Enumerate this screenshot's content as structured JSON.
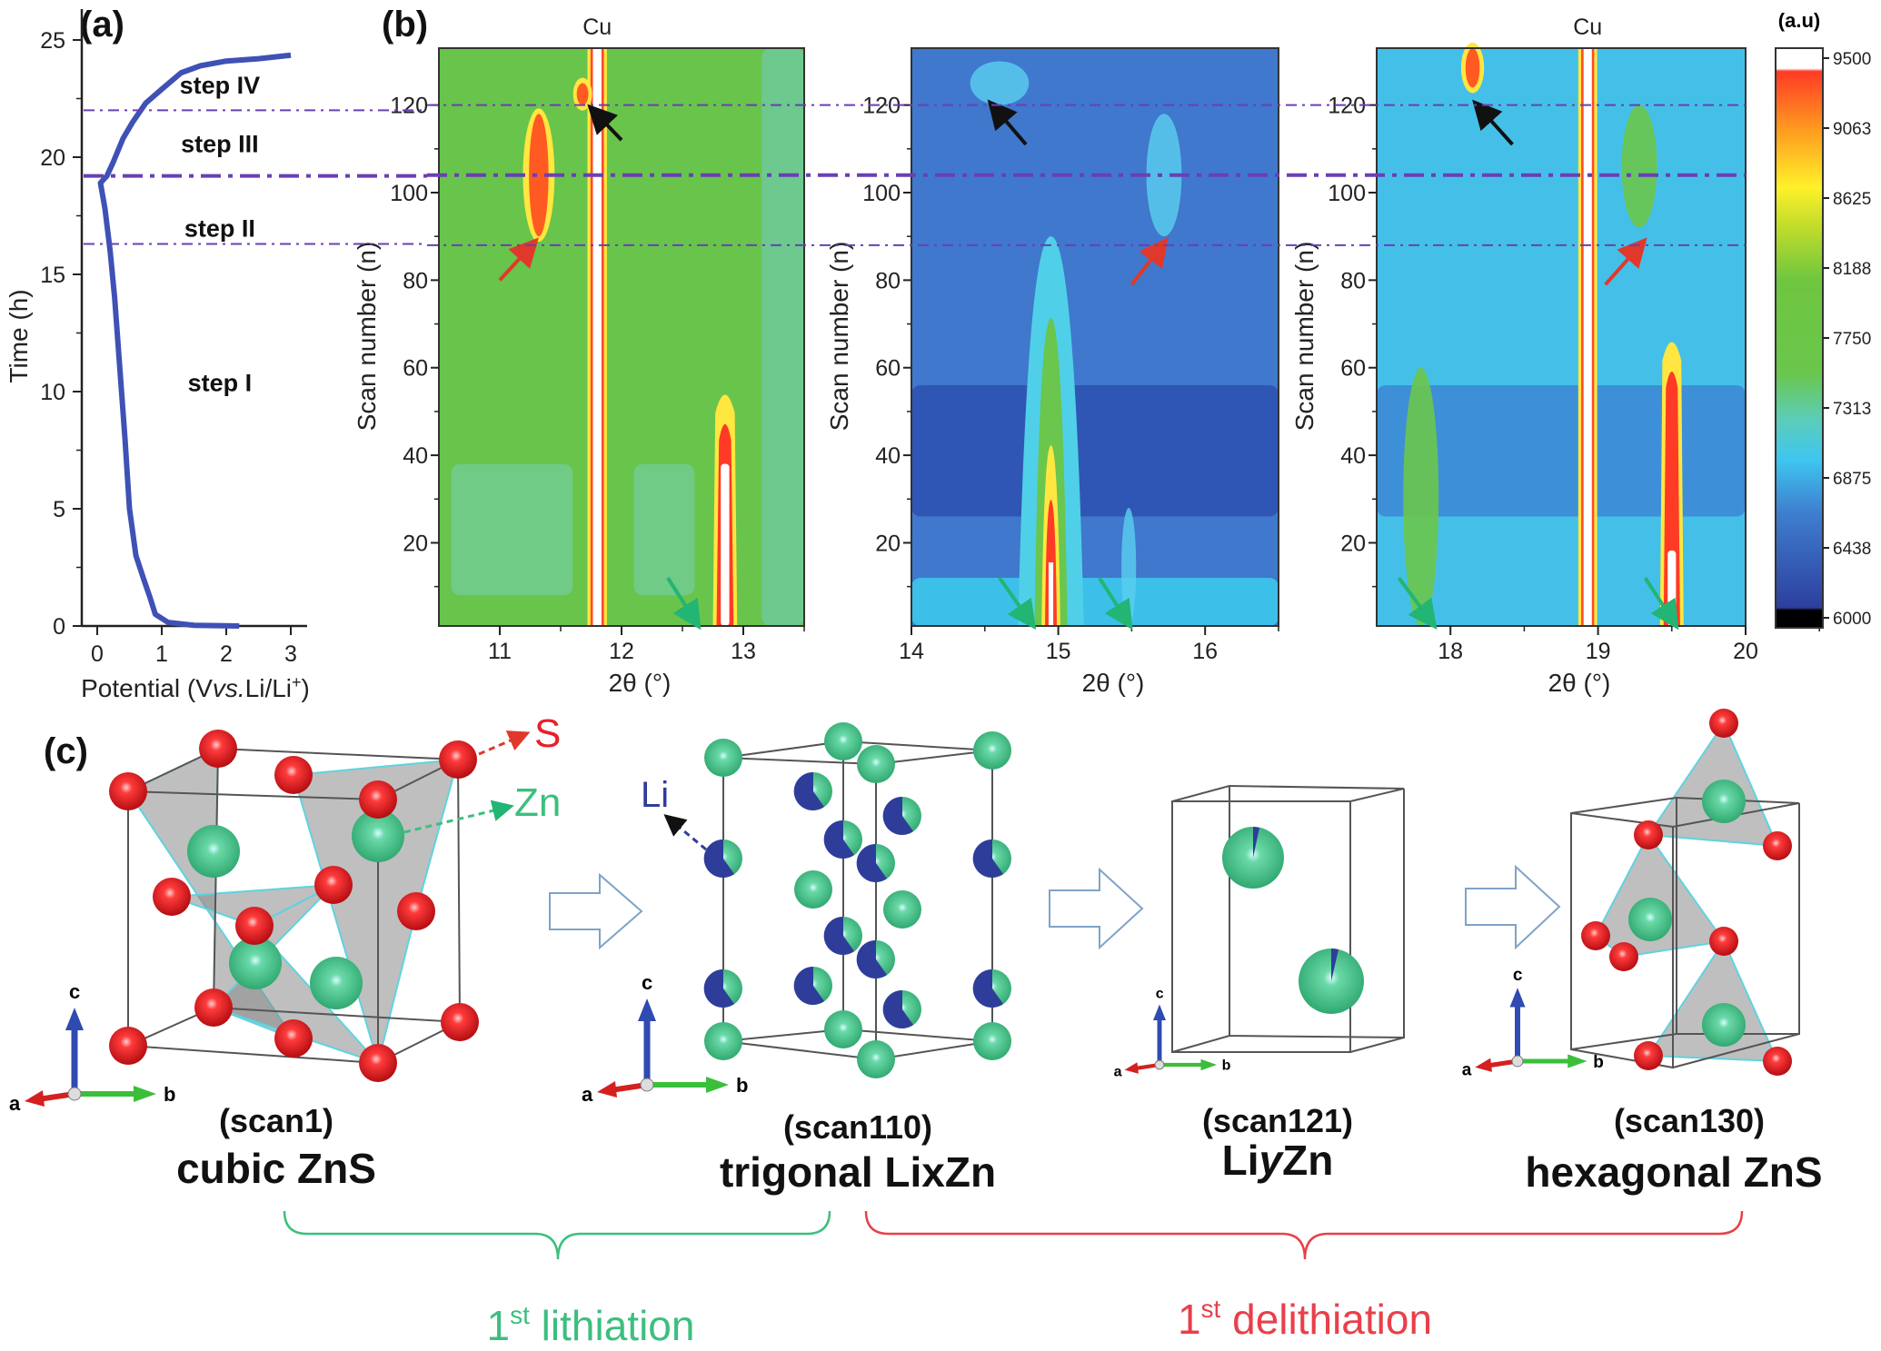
{
  "panels": {
    "a": "(a)",
    "b": "(b)",
    "c": "(c)"
  },
  "chart_data": [
    {
      "type": "line",
      "panel": "(a)",
      "xlabel": "Potential (V vs. Li/Li⁺)",
      "xlabel_parts": [
        "Potential (V",
        "vs.",
        "Li/Li",
        "+",
        ")"
      ],
      "ylabel": "Time (h)",
      "xlim": [
        -0.3,
        3.3
      ],
      "ylim": [
        0,
        25.5
      ],
      "xticks": [
        0,
        1,
        2,
        3
      ],
      "yticks": [
        0,
        5,
        10,
        15,
        20,
        25
      ],
      "line_color": "#3f51b5",
      "x": [
        2.2,
        1.5,
        1.1,
        0.9,
        0.82,
        0.72,
        0.6,
        0.5,
        0.43,
        0.35,
        0.27,
        0.2,
        0.12,
        0.05,
        0.15,
        0.25,
        0.4,
        0.55,
        0.75,
        1.0,
        1.3,
        1.6,
        2.0,
        2.5,
        3.0
      ],
      "y": [
        0,
        0.03,
        0.15,
        0.5,
        1.2,
        2.0,
        3.0,
        5.0,
        8.0,
        11.0,
        14.0,
        16.0,
        17.8,
        18.9,
        19.2,
        19.8,
        20.8,
        21.5,
        22.3,
        22.9,
        23.6,
        23.9,
        24.1,
        24.2,
        24.35
      ],
      "step_lines_time": [
        22.0,
        19.2,
        16.3
      ],
      "annotations": [
        {
          "text": "step IV",
          "x": 1.9,
          "y": 23.1
        },
        {
          "text": "step III",
          "x": 1.9,
          "y": 20.6
        },
        {
          "text": "step II",
          "x": 1.9,
          "y": 17.0
        },
        {
          "text": "step I",
          "x": 1.9,
          "y": 10.4
        }
      ]
    },
    {
      "type": "heatmap",
      "panel": "(b)",
      "ylabel": "Scan number (n)",
      "xlabel": "2θ (°)",
      "ylim": [
        1,
        133
      ],
      "yticks": [
        20,
        40,
        60,
        80,
        100,
        120
      ],
      "step_lines_scan": [
        120,
        104,
        88
      ],
      "subplots": [
        {
          "xlim": [
            10.5,
            13.5
          ],
          "xticks": [
            11,
            12,
            13
          ],
          "top_label": "Cu",
          "background": "#68c44a",
          "regions": [
            {
              "x": [
                10.6,
                11.6
              ],
              "scan": [
                8,
                38
              ],
              "color": "#6fcb86"
            },
            {
              "x": [
                12.1,
                12.6
              ],
              "scan": [
                8,
                38
              ],
              "color": "#6fcb86"
            },
            {
              "x": [
                13.15,
                13.5
              ],
              "scan": [
                1,
                133
              ],
              "color": "#6dc98e"
            }
          ],
          "peaks": [
            {
              "x": 11.8,
              "scan": [
                1,
                133
              ],
              "width": 0.05,
              "kind": "line",
              "label": "Cu"
            },
            {
              "x": 12.85,
              "scan": [
                1,
                58
              ],
              "width": 0.1,
              "kind": "fade"
            },
            {
              "x": 11.32,
              "scan": [
                90,
                118
              ],
              "width": 0.1,
              "kind": "blob"
            },
            {
              "x": 11.68,
              "scan": [
                120,
                125
              ],
              "width": 0.06,
              "kind": "blob"
            }
          ],
          "arrows": [
            {
              "color": "#e0392b",
              "from": [
                11.0,
                80
              ],
              "to": [
                11.28,
                88.5
              ]
            },
            {
              "color": "#111111",
              "from": [
                12.0,
                112
              ],
              "to": [
                11.76,
                119
              ]
            },
            {
              "color": "#22b573",
              "from": [
                12.38,
                12
              ],
              "to": [
                12.62,
                1.5
              ]
            }
          ]
        },
        {
          "xlim": [
            14,
            16.5
          ],
          "xticks": [
            14,
            15,
            16
          ],
          "top_label": "",
          "background": "#3f78cc",
          "regions": [
            {
              "x": [
                14,
                16.5
              ],
              "scan": [
                26,
                56
              ],
              "color": "#2f56b4"
            },
            {
              "x": [
                14,
                16.5
              ],
              "scan": [
                1,
                12
              ],
              "color": "#3cbfe9"
            }
          ],
          "peaks": [
            {
              "x": 14.95,
              "scan": [
                1,
                90
              ],
              "width": 0.16,
              "kind": "broad"
            },
            {
              "x": 15.72,
              "scan": [
                90,
                118
              ],
              "width": 0.12,
              "kind": "faint"
            },
            {
              "x": 15.48,
              "scan": [
                1,
                28
              ],
              "width": 0.05,
              "kind": "faint"
            },
            {
              "x": 14.6,
              "scan": [
                120,
                130
              ],
              "width": 0.2,
              "kind": "faint"
            }
          ],
          "arrows": [
            {
              "color": "#111111",
              "from": [
                14.78,
                111
              ],
              "to": [
                14.55,
                120
              ]
            },
            {
              "color": "#e0392b",
              "from": [
                15.5,
                79
              ],
              "to": [
                15.72,
                88.5
              ]
            },
            {
              "color": "#22b573",
              "from": [
                14.6,
                12
              ],
              "to": [
                14.82,
                1.5
              ]
            },
            {
              "color": "#22b573",
              "from": [
                15.28,
                12
              ],
              "to": [
                15.48,
                1.5
              ]
            }
          ]
        },
        {
          "xlim": [
            17.5,
            20
          ],
          "xticks": [
            18,
            19,
            20
          ],
          "top_label": "Cu",
          "background": "#44c0e8",
          "regions": [
            {
              "x": [
                17.5,
                20
              ],
              "scan": [
                26,
                56
              ],
              "color": "#3d8fd8"
            }
          ],
          "peaks": [
            {
              "x": 18.93,
              "scan": [
                1,
                133
              ],
              "width": 0.04,
              "kind": "line",
              "label": "Cu"
            },
            {
              "x": 19.5,
              "scan": [
                1,
                70
              ],
              "width": 0.08,
              "kind": "sharp"
            },
            {
              "x": 17.8,
              "scan": [
                1,
                60
              ],
              "width": 0.12,
              "kind": "green"
            },
            {
              "x": 19.28,
              "scan": [
                92,
                120
              ],
              "width": 0.12,
              "kind": "green"
            },
            {
              "x": 18.15,
              "scan": [
                124,
                133
              ],
              "width": 0.06,
              "kind": "blob"
            }
          ],
          "arrows": [
            {
              "color": "#111111",
              "from": [
                18.42,
                111
              ],
              "to": [
                18.18,
                120
              ]
            },
            {
              "color": "#e0392b",
              "from": [
                19.05,
                79
              ],
              "to": [
                19.3,
                88.5
              ]
            },
            {
              "color": "#22b573",
              "from": [
                17.65,
                12
              ],
              "to": [
                17.88,
                1.5
              ]
            },
            {
              "color": "#22b573",
              "from": [
                19.32,
                12
              ],
              "to": [
                19.52,
                1.5
              ]
            }
          ]
        }
      ],
      "colorbar": {
        "title": "(a.u)",
        "range": [
          6000,
          9500
        ],
        "ticks": [
          "9500",
          "9063",
          "8625",
          "8188",
          "7750",
          "7313",
          "6875",
          "6438",
          "6000"
        ],
        "colors": [
          "#000000",
          "#2d3f9e",
          "#3f7fd0",
          "#3ec6f0",
          "#5ccdb8",
          "#6ac64c",
          "#6fc63f",
          "#c8de2a",
          "#fff12a",
          "#ff9a20",
          "#ff3a25",
          "#ffffff"
        ]
      }
    }
  ],
  "structures": {
    "s_label": "S",
    "zn_label": "Zn",
    "li_label": "Li",
    "axis_labels": {
      "a": "a",
      "b": "b",
      "c": "c"
    },
    "items": [
      {
        "scan": "(scan1)",
        "phase": "cubic ZnS"
      },
      {
        "scan": "(scan110)",
        "phase": "trigonal LixZn"
      },
      {
        "scan": "(scan121)",
        "phase_pre": "Li",
        "phase_italic": "y",
        "phase_post": "Zn"
      },
      {
        "scan": "(scan130)",
        "phase": "hexagonal ZnS"
      }
    ],
    "colors": {
      "S": "#e8202a",
      "Zn": "#3cc08a",
      "Li": "#2f3d9a"
    }
  },
  "brackets": {
    "lithiation": {
      "pre": "1",
      "sup": "st",
      "text": " lithiation",
      "color": "#3cbf7e"
    },
    "delithiation": {
      "pre": "1",
      "sup": "st",
      "text": " delithiation",
      "color": "#e8404a"
    }
  }
}
